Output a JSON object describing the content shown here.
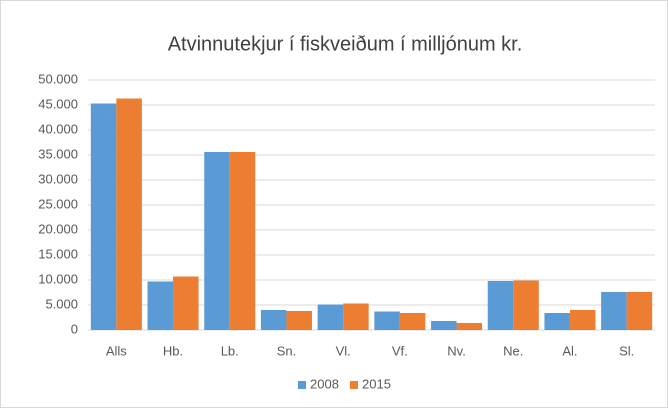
{
  "chart_data": {
    "type": "bar",
    "title": "Atvinnutekjur í fiskveiðum í milljónum kr.",
    "categories": [
      "Alls",
      "Hb.",
      "Lb.",
      "Sn.",
      "Vl.",
      "Vf.",
      "Nv.",
      "Ne.",
      "Al.",
      "Sl."
    ],
    "series": [
      {
        "name": "2008",
        "color": "#5b9bd5",
        "values": [
          45300,
          9700,
          35600,
          4000,
          5100,
          3700,
          1800,
          9800,
          3400,
          7600
        ]
      },
      {
        "name": "2015",
        "color": "#ed7d31",
        "values": [
          46300,
          10700,
          35600,
          3800,
          5300,
          3400,
          1400,
          9900,
          4000,
          7600
        ]
      }
    ],
    "ylim": [
      0,
      50000
    ],
    "yticks": [
      0,
      {
        "value": 5000,
        "label": "5.000"
      },
      {
        "value": 10000,
        "label": "10.000"
      },
      {
        "value": 15000,
        "label": "15.000"
      },
      {
        "value": 20000,
        "label": "20.000"
      },
      {
        "value": 25000,
        "label": "25.000"
      },
      {
        "value": 30000,
        "label": "30.000"
      },
      {
        "value": 35000,
        "label": "35.000"
      },
      {
        "value": 40000,
        "label": "40.000"
      },
      {
        "value": 45000,
        "label": "45.000"
      },
      {
        "value": 50000,
        "label": "50.000"
      }
    ],
    "grid": true,
    "legend": "bottom"
  }
}
